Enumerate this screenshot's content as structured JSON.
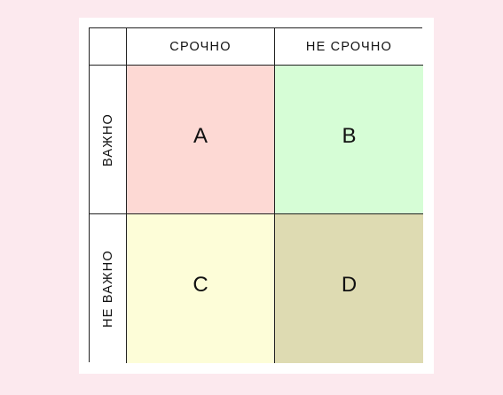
{
  "header": {
    "col_urgent": "СРОЧНО",
    "col_not_urgent": "НЕ СРОЧНО"
  },
  "rows": {
    "important": "ВАЖНО",
    "not_important": "НЕ ВАЖНО"
  },
  "quadrants": [
    {
      "label": "A",
      "color": "#fdd9d4"
    },
    {
      "label": "B",
      "color": "#d6fdd6"
    },
    {
      "label": "C",
      "color": "#fdfdd8"
    },
    {
      "label": "D",
      "color": "#dedbb2"
    }
  ],
  "colors": {
    "background": "#fce9ee",
    "panel": "#ffffff",
    "border": "#222222"
  }
}
